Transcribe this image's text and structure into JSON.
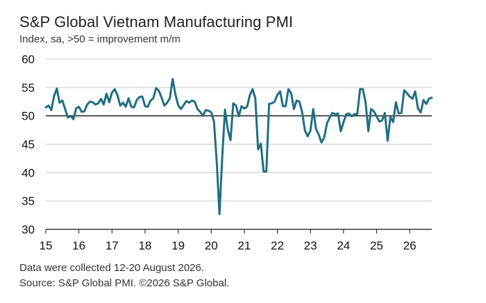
{
  "header": {
    "title": "S&P Global Vietnam Manufacturing PMI",
    "subtitle": "Index, sa, >50 = improvement m/m"
  },
  "footer": {
    "note": "Data were collected 12-20 August 2026.",
    "source": "Source: S&P Global PMI. ©2026 S&P Global."
  },
  "chart_data": {
    "type": "line",
    "title": "S&P Global Vietnam Manufacturing PMI",
    "subtitle": "Index, sa, >50 = improvement m/m",
    "xlabel": "",
    "ylabel": "",
    "ylim": [
      30,
      60
    ],
    "yticks": [
      30,
      35,
      40,
      45,
      50,
      55,
      60
    ],
    "xlim": [
      2015.0,
      2026.67
    ],
    "xticks": [
      {
        "x": 2015,
        "label": "15"
      },
      {
        "x": 2016,
        "label": "16"
      },
      {
        "x": 2017,
        "label": "17"
      },
      {
        "x": 2018,
        "label": "18"
      },
      {
        "x": 2019,
        "label": "19"
      },
      {
        "x": 2020,
        "label": "20"
      },
      {
        "x": 2021,
        "label": "21"
      },
      {
        "x": 2022,
        "label": "22"
      },
      {
        "x": 2023,
        "label": "23"
      },
      {
        "x": 2024,
        "label": "24"
      },
      {
        "x": 2025,
        "label": "25"
      },
      {
        "x": 2026,
        "label": "26"
      }
    ],
    "grid": "horizontal",
    "reference_line": 50,
    "line_color": "#1f6e82",
    "reference_color": "#111111",
    "series": [
      {
        "values": [
          51.5,
          51.8,
          51.0,
          53.5,
          54.8,
          52.3,
          52.7,
          51.2,
          49.7,
          50.0,
          49.4,
          51.3,
          51.6,
          50.7,
          50.8,
          52.0,
          52.5,
          52.4,
          52.0,
          52.2,
          53.0,
          52.0,
          53.9,
          52.4,
          54.1,
          54.7,
          53.6,
          51.8,
          52.3,
          51.6,
          53.1,
          51.6,
          51.5,
          52.8,
          53.3,
          53.4,
          51.7,
          51.6,
          52.7,
          53.1,
          54.9,
          54.4,
          53.2,
          51.8,
          52.3,
          53.1,
          56.5,
          53.8,
          51.9,
          51.2,
          51.9,
          52.6,
          52.3,
          52.7,
          52.5,
          51.2,
          50.7,
          50.0,
          51.0,
          50.9,
          50.6,
          49.0,
          41.9,
          32.7,
          42.7,
          51.1,
          47.6,
          45.7,
          52.2,
          51.8,
          49.9,
          51.7,
          51.3,
          51.6,
          53.6,
          54.7,
          53.1,
          44.1,
          45.1,
          40.2,
          40.2,
          52.1,
          52.2,
          52.5,
          53.7,
          54.3,
          51.7,
          51.7,
          54.7,
          54.0,
          51.2,
          52.7,
          52.5,
          50.6,
          47.4,
          46.4,
          47.4,
          51.2,
          47.7,
          46.7,
          45.3,
          46.2,
          48.7,
          49.7,
          50.5,
          50.3,
          50.4,
          47.3,
          48.9,
          50.3,
          50.4,
          49.9,
          50.3,
          50.3,
          54.7,
          54.7,
          52.4,
          47.3,
          51.2,
          50.8,
          49.9,
          49.0,
          49.2,
          50.5,
          45.6,
          49.8,
          48.9,
          52.4,
          50.4,
          50.5,
          54.5,
          54.0,
          53.4,
          53.0,
          54.3,
          51.3,
          50.6,
          52.8,
          52.1,
          53.0,
          53.2
        ]
      }
    ]
  }
}
